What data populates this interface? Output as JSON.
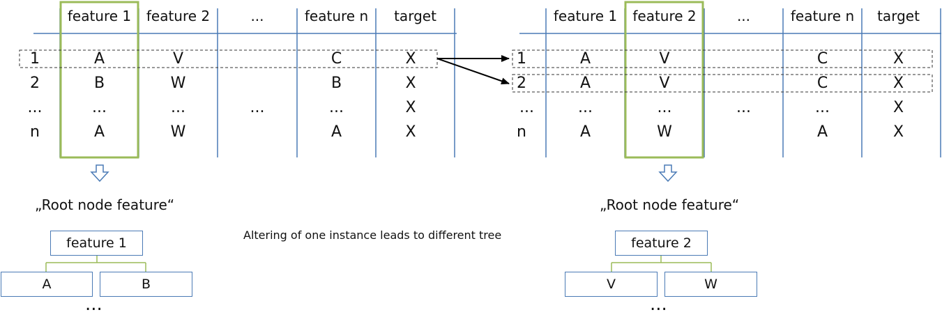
{
  "left_table": {
    "headers": [
      "feature 1",
      "feature 2",
      "...",
      "feature n",
      "target"
    ],
    "rows": [
      [
        "1",
        "A",
        "V",
        "",
        "C",
        "X"
      ],
      [
        "2",
        "B",
        "W",
        "",
        "B",
        "X"
      ],
      [
        "...",
        "...",
        "...",
        "...",
        "...",
        "X"
      ],
      [
        "n",
        "A",
        "W",
        "",
        "A",
        "X"
      ]
    ]
  },
  "right_table": {
    "headers": [
      "feature 1",
      "feature 2",
      "...",
      "feature n",
      "target"
    ],
    "rows": [
      [
        "1",
        "A",
        "V",
        "",
        "C",
        "X"
      ],
      [
        "2",
        "A",
        "V",
        "",
        "C",
        "X"
      ],
      [
        "...",
        "...",
        "...",
        "...",
        "...",
        "X"
      ],
      [
        "n",
        "A",
        "W",
        "",
        "A",
        "X"
      ]
    ]
  },
  "left_root_label": "„Root node feature“",
  "right_root_label": "„Root node feature“",
  "caption": "Altering of one instance leads to different tree",
  "left_tree": {
    "root": "feature 1",
    "children": [
      "A",
      "B"
    ],
    "more": "..."
  },
  "right_tree": {
    "root": "feature 2",
    "children": [
      "V",
      "W"
    ],
    "more": "..."
  },
  "colors": {
    "grid": "#4a7ab5",
    "highlight": "#9bbb59",
    "arrow": "#000000"
  }
}
